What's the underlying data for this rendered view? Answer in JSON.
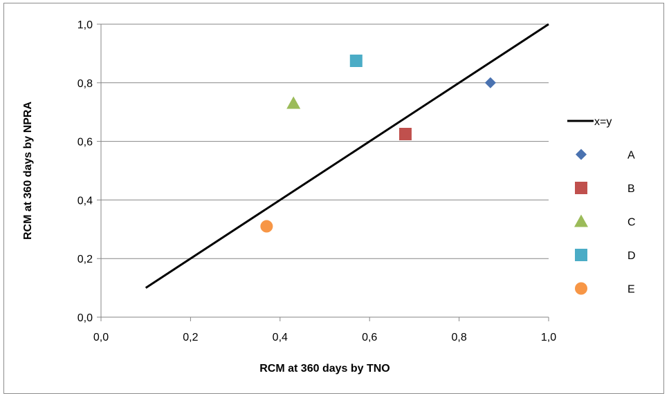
{
  "chart_data": {
    "type": "scatter",
    "xlabel": "RCM at 360 days by TNO",
    "ylabel": "RCM at 360 days by NPRA",
    "xlim": [
      0,
      1
    ],
    "ylim": [
      0,
      1
    ],
    "x_ticks": [
      "0,0",
      "0,2",
      "0,4",
      "0,6",
      "0,8",
      "1,0"
    ],
    "y_ticks": [
      "0,0",
      "0,2",
      "0,4",
      "0,6",
      "0,8",
      "1,0"
    ],
    "grid": "horizontal",
    "legend_position": "right",
    "reference_line": {
      "name": "x=y",
      "x": [
        0.1,
        1.0
      ],
      "y": [
        0.1,
        1.0
      ],
      "color": "#000000"
    },
    "series": [
      {
        "name": "A",
        "marker": "diamond",
        "color": "#4a72b0",
        "x": 0.87,
        "y": 0.8
      },
      {
        "name": "B",
        "marker": "square",
        "color": "#c0504d",
        "x": 0.68,
        "y": 0.625
      },
      {
        "name": "C",
        "marker": "triangle",
        "color": "#9bbb59",
        "x": 0.43,
        "y": 0.73
      },
      {
        "name": "D",
        "marker": "square",
        "color": "#4bacc6",
        "x": 0.57,
        "y": 0.875
      },
      {
        "name": "E",
        "marker": "circle",
        "color": "#f79646",
        "x": 0.37,
        "y": 0.31
      }
    ]
  }
}
